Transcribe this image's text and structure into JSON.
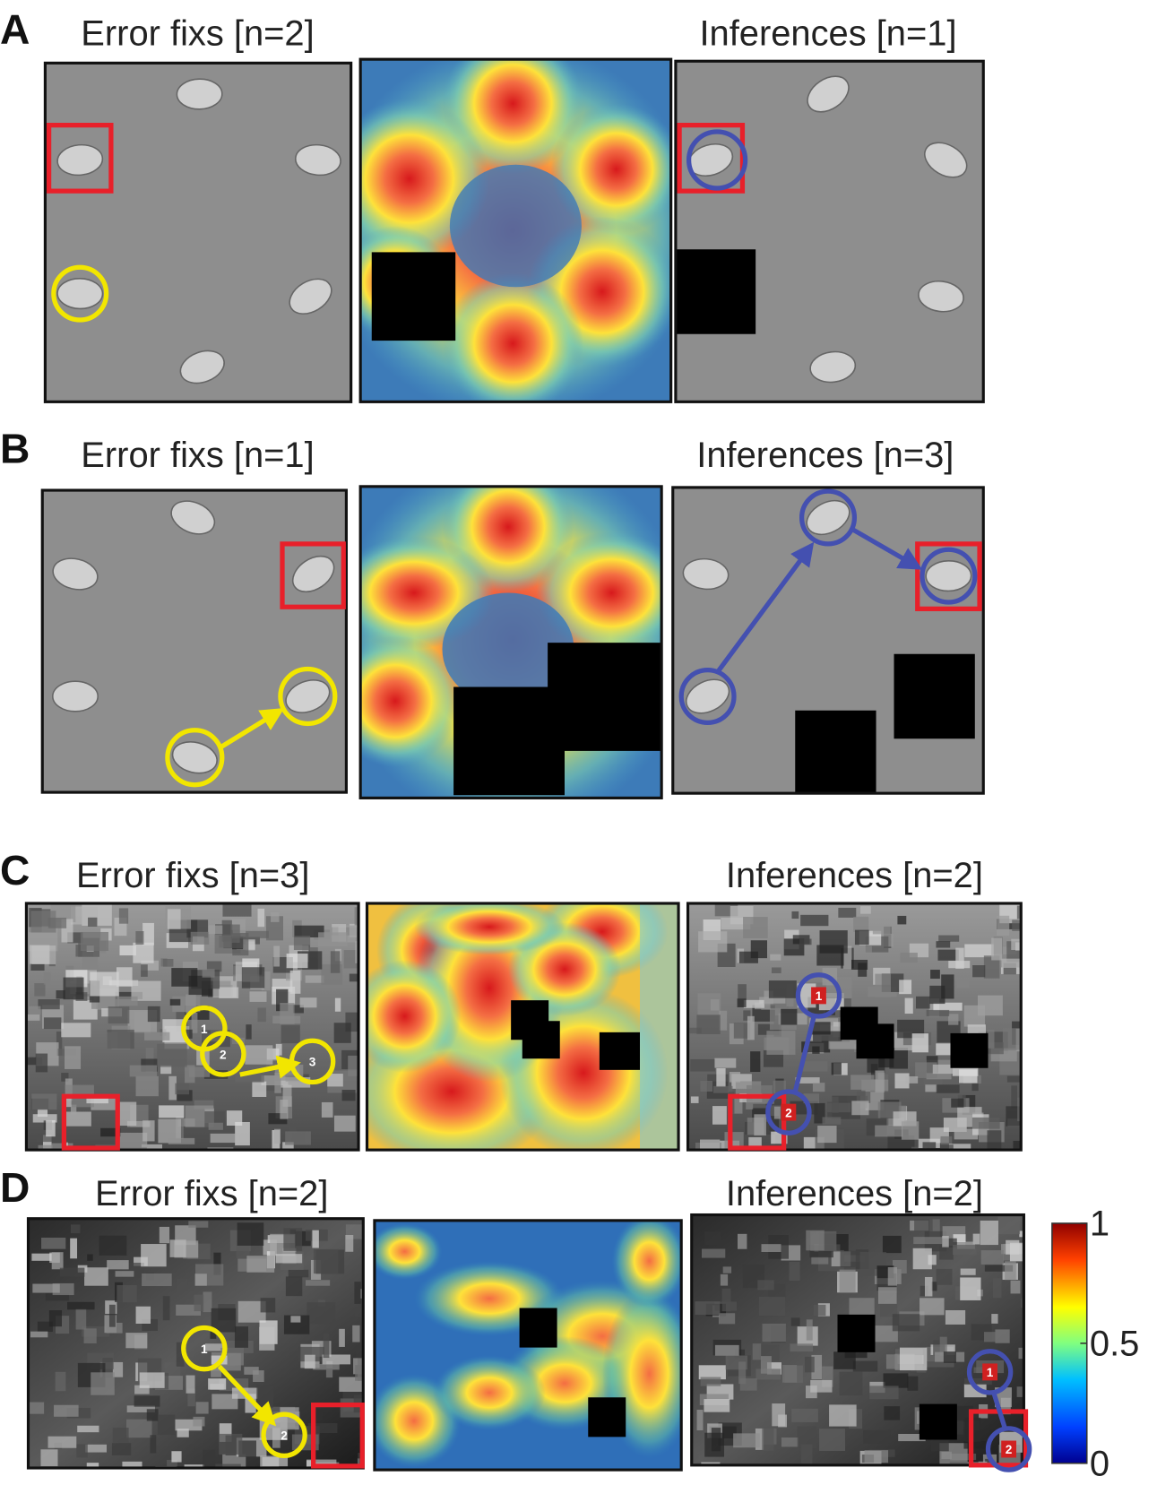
{
  "panels": [
    {
      "letter": "A",
      "error_fix_title": "Error fixs [n=2]",
      "inference_title": "Inferences [n=1]"
    },
    {
      "letter": "B",
      "error_fix_title": "Error fixs [n=1]",
      "inference_title": "Inferences [n=3]"
    },
    {
      "letter": "C",
      "error_fix_title": "Error fixs [n=3]",
      "inference_title": "Inferences [n=2]",
      "error_fix_markers": [
        "1",
        "2",
        "3"
      ],
      "inference_markers": [
        "1",
        "2"
      ]
    },
    {
      "letter": "D",
      "error_fix_title": "Error fixs [n=2]",
      "inference_title": "Inferences [n=2]",
      "error_fix_markers": [
        "1",
        "2"
      ],
      "inference_markers": [
        "1",
        "2"
      ]
    }
  ],
  "colorbar": {
    "ticks": [
      1,
      0.5,
      0
    ]
  }
}
